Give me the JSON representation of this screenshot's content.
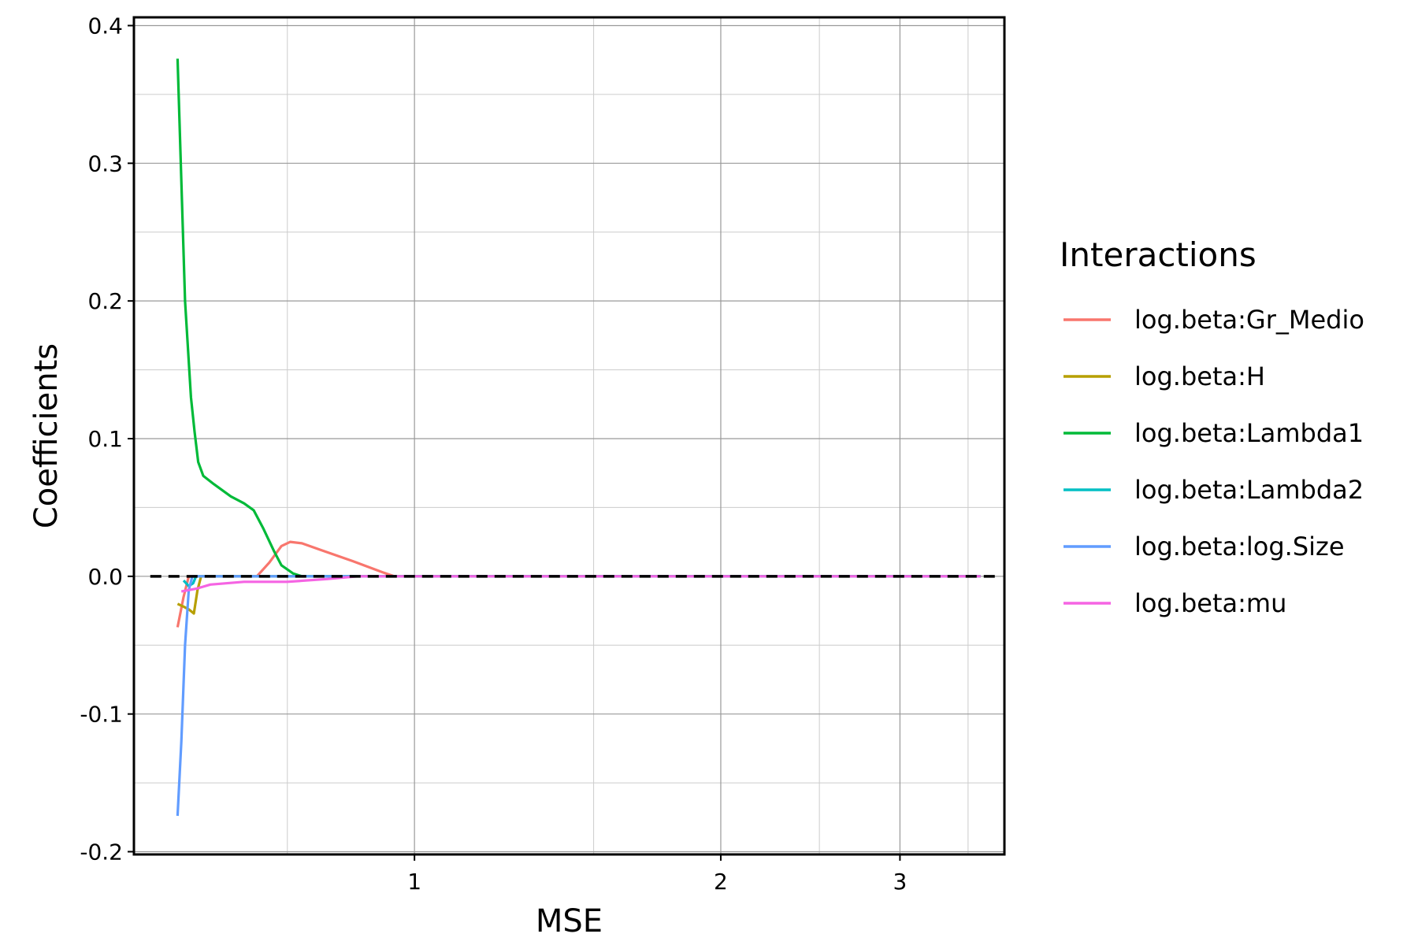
{
  "chart_data": {
    "type": "line",
    "xlabel": "MSE",
    "ylabel": "Coefficients",
    "x_scale": "log",
    "xlim": [
      0.53,
      3.8
    ],
    "ylim": [
      -0.202,
      0.406
    ],
    "x_ticks": [
      1,
      2,
      3
    ],
    "x_tick_labels": [
      "1",
      "2",
      "3"
    ],
    "y_ticks": [
      -0.2,
      -0.1,
      0.0,
      0.1,
      0.2,
      0.3,
      0.4
    ],
    "y_tick_labels": [
      "-0.2",
      "-0.1",
      "0.0",
      "0.1",
      "0.2",
      "0.3",
      "0.4"
    ],
    "grid": true,
    "reference_line": {
      "y": 0,
      "style": "dashed",
      "color": "#000000"
    },
    "legend": {
      "title": "Interactions",
      "position": "right"
    },
    "series": [
      {
        "name": "log.beta:Gr_Medio",
        "color": "#F8766D",
        "points": [
          [
            0.585,
            -0.037
          ],
          [
            0.593,
            -0.015
          ],
          [
            0.6,
            0.0
          ],
          [
            0.7,
            0.0
          ],
          [
            0.72,
            0.01
          ],
          [
            0.74,
            0.022
          ],
          [
            0.755,
            0.025
          ],
          [
            0.775,
            0.024
          ],
          [
            0.81,
            0.019
          ],
          [
            0.87,
            0.011
          ],
          [
            0.93,
            0.003
          ],
          [
            0.955,
            0.0
          ],
          [
            3.6,
            0.0
          ]
        ]
      },
      {
        "name": "log.beta:H",
        "color": "#B79F00",
        "points": [
          [
            0.585,
            -0.02
          ],
          [
            0.593,
            -0.022
          ],
          [
            0.6,
            -0.024
          ],
          [
            0.607,
            -0.027
          ],
          [
            0.612,
            -0.01
          ],
          [
            0.617,
            0.0
          ],
          [
            3.6,
            0.0
          ]
        ]
      },
      {
        "name": "log.beta:Lambda1",
        "color": "#00BA38",
        "points": [
          [
            0.585,
            0.376
          ],
          [
            0.595,
            0.2
          ],
          [
            0.603,
            0.13
          ],
          [
            0.608,
            0.105
          ],
          [
            0.613,
            0.083
          ],
          [
            0.62,
            0.073
          ],
          [
            0.635,
            0.067
          ],
          [
            0.66,
            0.058
          ],
          [
            0.68,
            0.053
          ],
          [
            0.695,
            0.048
          ],
          [
            0.71,
            0.035
          ],
          [
            0.728,
            0.018
          ],
          [
            0.74,
            0.008
          ],
          [
            0.76,
            0.002
          ],
          [
            0.775,
            0.0
          ],
          [
            3.6,
            0.0
          ]
        ]
      },
      {
        "name": "log.beta:Lambda2",
        "color": "#00BFC4",
        "points": [
          [
            0.593,
            -0.003
          ],
          [
            0.6,
            -0.007
          ],
          [
            0.606,
            -0.005
          ],
          [
            0.61,
            0.0
          ],
          [
            3.6,
            0.0
          ]
        ]
      },
      {
        "name": "log.beta:log.Size",
        "color": "#619CFF",
        "points": [
          [
            0.585,
            -0.174
          ],
          [
            0.59,
            -0.12
          ],
          [
            0.595,
            -0.05
          ],
          [
            0.6,
            -0.01
          ],
          [
            0.605,
            0.0
          ],
          [
            3.6,
            0.0
          ]
        ]
      },
      {
        "name": "log.beta:mu",
        "color": "#F564E3",
        "points": [
          [
            0.59,
            -0.011
          ],
          [
            0.61,
            -0.009
          ],
          [
            0.63,
            -0.006
          ],
          [
            0.68,
            -0.004
          ],
          [
            0.75,
            -0.004
          ],
          [
            0.82,
            -0.002
          ],
          [
            0.88,
            0.0
          ],
          [
            3.6,
            0.0
          ]
        ]
      }
    ]
  }
}
